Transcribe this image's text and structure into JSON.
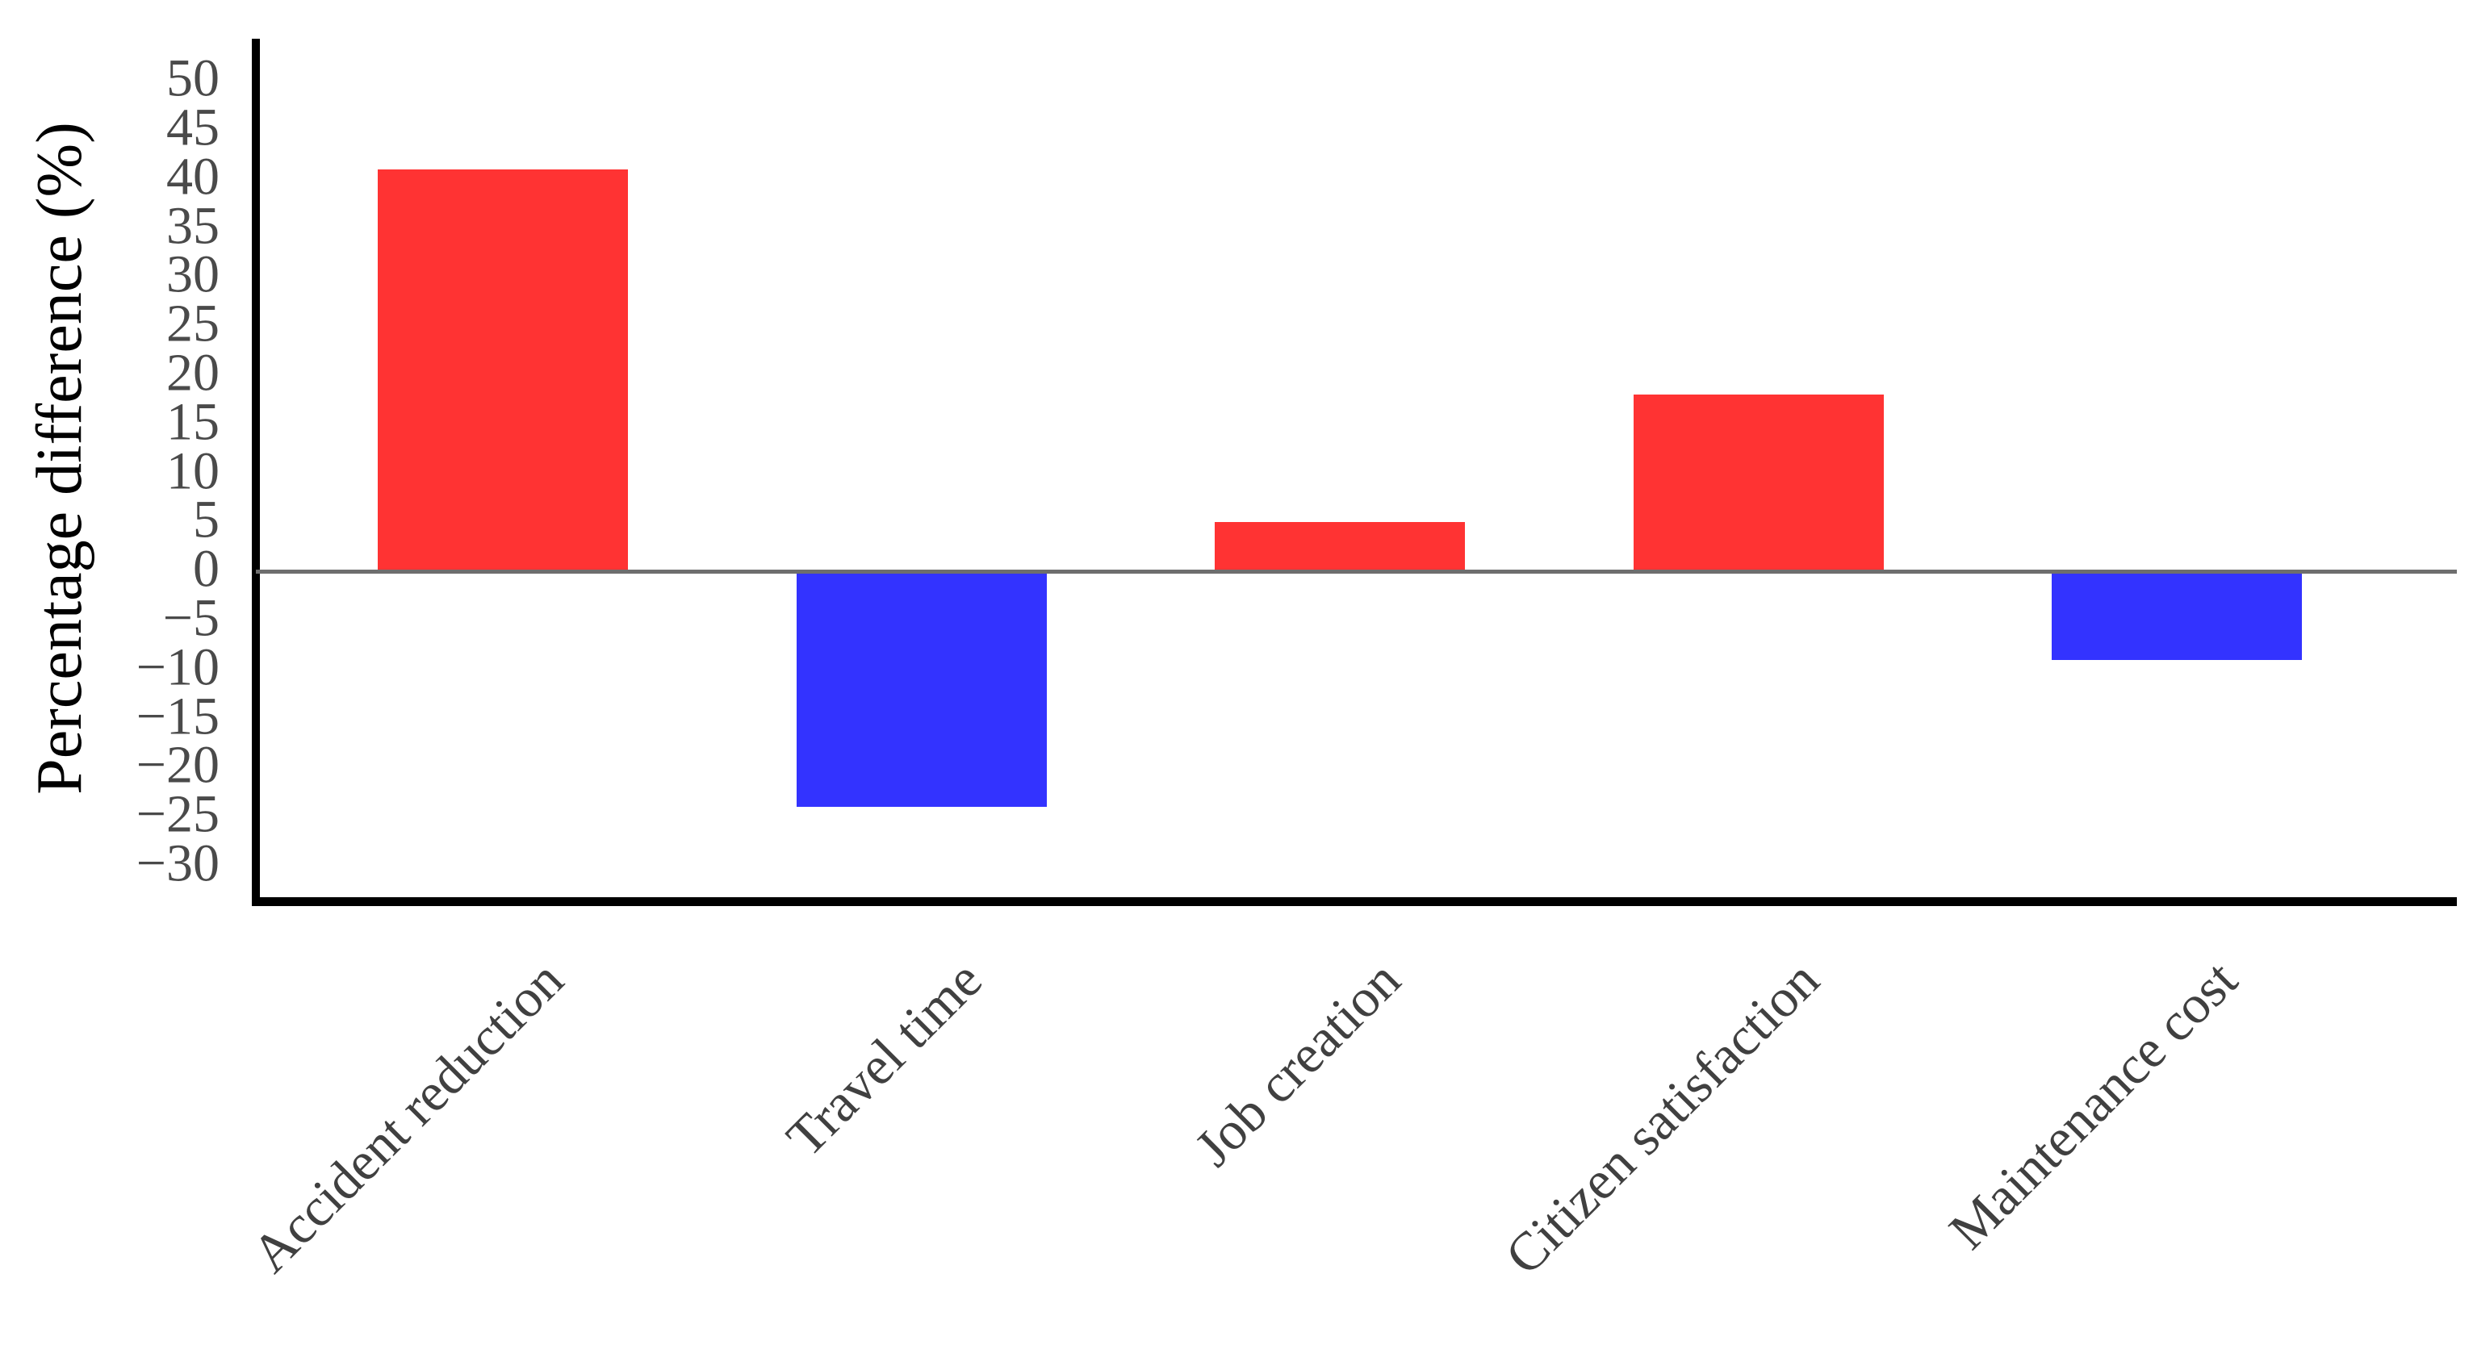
{
  "figure": {
    "background": "#ffffff"
  },
  "chart_data": {
    "type": "bar",
    "title": "",
    "xlabel": "",
    "ylabel": "Percentage difference (%)",
    "categories": [
      "Accident reduction",
      "Travel time",
      "Job creation",
      "Citizen satisfaction",
      "Maintenance cost"
    ],
    "values": [
      41,
      -24,
      5,
      18,
      -9
    ],
    "positive_color": "#ff3333",
    "negative_color": "#3333ff",
    "yticks": [
      50,
      45,
      40,
      35,
      30,
      25,
      20,
      15,
      10,
      5,
      0,
      -5,
      -10,
      -15,
      -20,
      -25,
      -30
    ],
    "ylim": [
      -33.7,
      54.3
    ],
    "grid": false,
    "legend": false,
    "zero_line": true,
    "zero_line_color": "#6e6e6e",
    "axis_color": "#000000",
    "tick_label_color": "#4a4a4a",
    "category_label_color": "#404040",
    "bar_orientation": "vertical"
  }
}
